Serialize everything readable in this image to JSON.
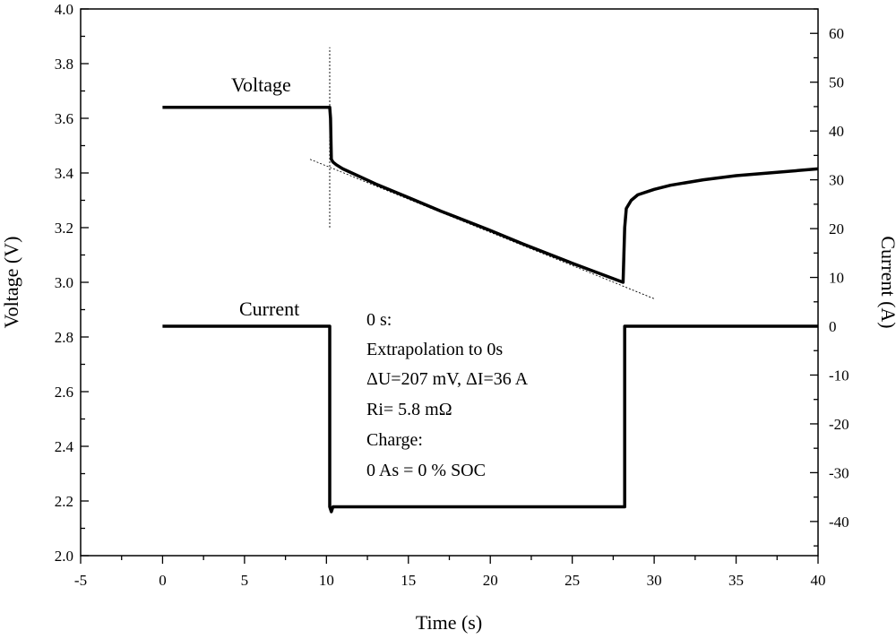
{
  "chart_data": {
    "type": "line",
    "title": "",
    "xlabel": "Time (s)",
    "ylabel_left": "Voltage (V)",
    "ylabel_right": "Current (A)",
    "xlim": [
      -5,
      40
    ],
    "ylim_left": [
      2.0,
      4.0
    ],
    "ylim_right": [
      -47,
      65
    ],
    "x_ticks": [
      "-5",
      "0",
      "5",
      "10",
      "15",
      "20",
      "25",
      "30",
      "35",
      "40"
    ],
    "y_left_ticks": [
      "2.0",
      "2.2",
      "2.4",
      "2.6",
      "2.8",
      "3.0",
      "3.2",
      "3.4",
      "3.6",
      "3.8",
      "4.0"
    ],
    "y_right_ticks": [
      "60",
      "50",
      "40",
      "30",
      "20",
      "10",
      "0",
      "-10",
      "-20",
      "-30",
      "-40"
    ],
    "grid": false,
    "series": [
      {
        "name": "Voltage",
        "axis": "left",
        "x": [
          0,
          10.2,
          10.25,
          10.28,
          10.3,
          10.4,
          10.6,
          11,
          13,
          15,
          17,
          20,
          22,
          25,
          28.1,
          28.15,
          28.2,
          28.3,
          28.6,
          29,
          30,
          31,
          33,
          35,
          37,
          40
        ],
        "y": [
          3.64,
          3.64,
          3.6,
          3.5,
          3.45,
          3.44,
          3.43,
          3.415,
          3.36,
          3.31,
          3.26,
          3.19,
          3.14,
          3.07,
          3.0,
          3.1,
          3.2,
          3.27,
          3.3,
          3.32,
          3.34,
          3.355,
          3.375,
          3.39,
          3.4,
          3.415
        ]
      },
      {
        "name": "Current",
        "axis": "right",
        "x": [
          0,
          10.2,
          10.2,
          10.3,
          10.4,
          28.2,
          28.2,
          40
        ],
        "y": [
          0,
          0,
          -37,
          -38,
          -37,
          -37,
          0,
          0
        ]
      }
    ],
    "guides": [
      {
        "type": "vertical",
        "x": 10.2,
        "ylim": [
          3.2,
          3.86
        ]
      },
      {
        "type": "extrapolation",
        "x": [
          9,
          30
        ],
        "y": [
          3.45,
          2.94
        ]
      }
    ],
    "annotations": [
      {
        "line": "0 s:"
      },
      {
        "line": "Extrapolation to 0s"
      },
      {
        "line": "ΔU=207 mV, ΔI=36 A"
      },
      {
        "line": "Ri= 5.8 mΩ"
      },
      {
        "line": "Charge:"
      },
      {
        "line": "0 As = 0 % SOC"
      }
    ]
  }
}
